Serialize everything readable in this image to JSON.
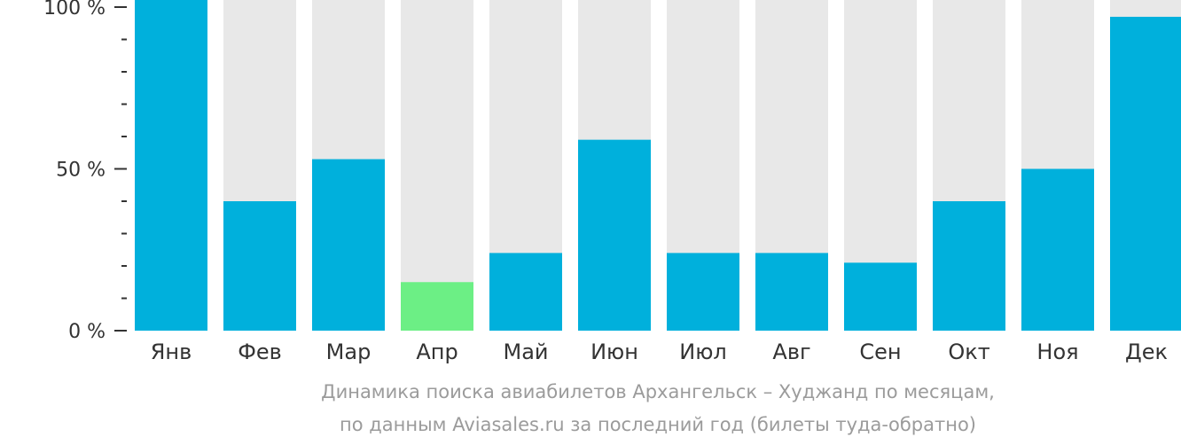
{
  "chart_data": {
    "type": "bar",
    "categories": [
      "Янв",
      "Фев",
      "Мар",
      "Апр",
      "Май",
      "Июн",
      "Июл",
      "Авг",
      "Сен",
      "Окт",
      "Ноя",
      "Дек"
    ],
    "values": [
      100,
      40,
      53,
      15,
      24,
      59,
      24,
      24,
      21,
      40,
      50,
      97
    ],
    "highlight_index": 3,
    "ylim": [
      0,
      100
    ],
    "yticks": [
      {
        "value": 0,
        "label": "0 %"
      },
      {
        "value": 50,
        "label": "50 %"
      },
      {
        "value": 100,
        "label": "100 %"
      }
    ],
    "minor_tick_step": 10,
    "grid": false,
    "legend": "none",
    "caption_line1": "Динамика поиска авиабилетов Архангельск – Худжанд по месяцам,",
    "caption_line2": "по данным Aviasales.ru за последний год (билеты туда-обратно)",
    "colors": {
      "bar": "#00b0dc",
      "highlight": "#6cef85",
      "background_bar": "#e8e8e8",
      "axis": "#333333",
      "caption": "#9b9b9b"
    }
  }
}
